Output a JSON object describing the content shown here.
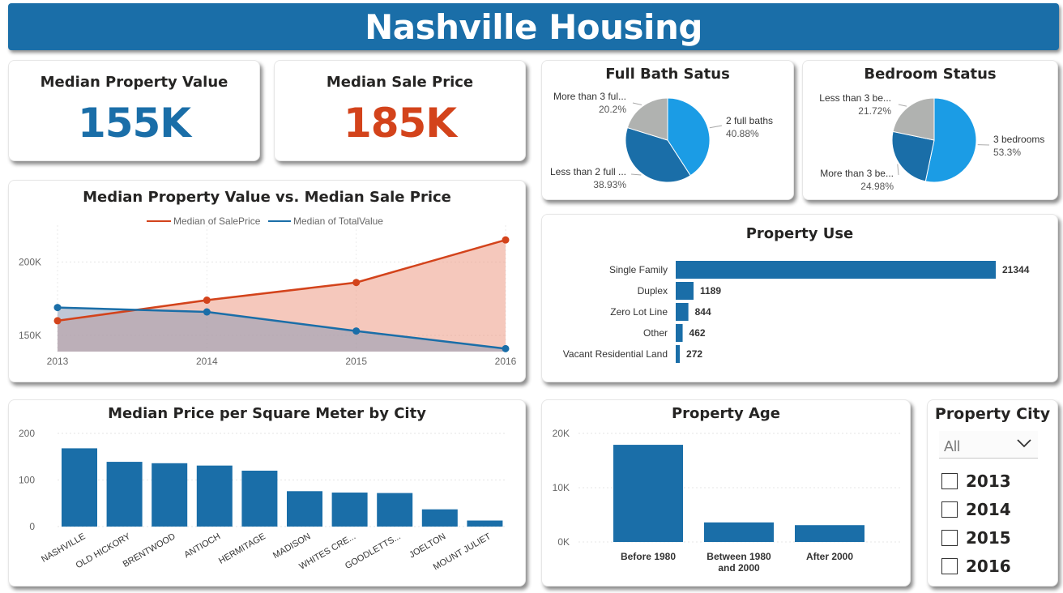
{
  "header": {
    "title": "Nashville Housing"
  },
  "kpis": {
    "property_value": {
      "label": "Median Property Value",
      "value": "155K",
      "color": "#1a6ea8"
    },
    "sale_price": {
      "label": "Median Sale Price",
      "value": "185K",
      "color": "#d3431b"
    }
  },
  "colors": {
    "blue": "#1a6ea8",
    "orange": "#d3431b",
    "light_blue": "#1b9ce5",
    "gray": "#b0b2b0"
  },
  "full_bath": {
    "title": "Full Bath Satus",
    "slices": [
      {
        "label": "2 full baths",
        "pct": "40.88%",
        "value": 40.88,
        "color": "#1b9ce5"
      },
      {
        "label": "Less than 2 full ...",
        "pct": "38.93%",
        "value": 38.93,
        "color": "#1a6ea8"
      },
      {
        "label": "More than 3 ful...",
        "pct": "20.2%",
        "value": 20.2,
        "color": "#b0b2b0"
      }
    ]
  },
  "bedroom": {
    "title": "Bedroom Status",
    "slices": [
      {
        "label": "3 bedrooms",
        "pct": "53.3%",
        "value": 53.3,
        "color": "#1b9ce5"
      },
      {
        "label": "More than 3 be...",
        "pct": "24.98%",
        "value": 24.98,
        "color": "#1a6ea8"
      },
      {
        "label": "Less than 3 be...",
        "pct": "21.72%",
        "value": 21.72,
        "color": "#b0b2b0"
      }
    ]
  },
  "line_chart": {
    "title": "Median Property Value vs. Median Sale Price",
    "legend": [
      "Median of SalePrice",
      "Median of TotalValue"
    ],
    "y_ticks": [
      "200K",
      "150K"
    ]
  },
  "property_use": {
    "title": "Property Use"
  },
  "price_sqm": {
    "title": "Median Price per Square Meter by City",
    "y_ticks": [
      "200",
      "100",
      "0"
    ]
  },
  "property_age": {
    "title": "Property Age",
    "y_ticks": [
      "20K",
      "10K",
      "0K"
    ]
  },
  "slicer": {
    "title": "Property City",
    "dropdown_value": "All",
    "options": [
      "2013",
      "2014",
      "2015",
      "2016"
    ]
  },
  "chart_data": [
    {
      "type": "line",
      "title": "Median Property Value vs. Median Sale Price",
      "x": [
        "2013",
        "2014",
        "2015",
        "2016"
      ],
      "series": [
        {
          "name": "Median of SalePrice",
          "values": [
            160000,
            174000,
            186000,
            215000
          ],
          "color": "#d3431b"
        },
        {
          "name": "Median of TotalValue",
          "values": [
            169000,
            166000,
            153000,
            141000
          ],
          "color": "#1a6ea8"
        }
      ],
      "ylim": [
        140000,
        220000
      ]
    },
    {
      "type": "bar",
      "title": "Property Use",
      "orientation": "horizontal",
      "categories": [
        "Single Family",
        "Duplex",
        "Zero Lot Line",
        "Other",
        "Vacant Residential Land"
      ],
      "values": [
        21344,
        1189,
        844,
        462,
        272
      ]
    },
    {
      "type": "bar",
      "title": "Median Price per Square Meter by City",
      "categories": [
        "NASHVILLE",
        "OLD HICKORY",
        "BRENTWOOD",
        "ANTIOCH",
        "HERMITAGE",
        "MADISON",
        "WHITES CRE...",
        "GOODLETTS...",
        "JOELTON",
        "MOUNT JULIET"
      ],
      "values": [
        168,
        139,
        136,
        131,
        120,
        76,
        73,
        72,
        37,
        13
      ],
      "ylim": [
        0,
        200
      ]
    },
    {
      "type": "bar",
      "title": "Property Age",
      "categories": [
        "Before 1980",
        "Between 1980 and 2000",
        "After 2000"
      ],
      "values": [
        17900,
        3600,
        3100
      ],
      "ylim": [
        0,
        20000
      ]
    },
    {
      "type": "pie",
      "title": "Full Bath Satus",
      "labels": [
        "2 full baths",
        "Less than 2 full ...",
        "More than 3 ful..."
      ],
      "values": [
        40.88,
        38.93,
        20.2
      ]
    },
    {
      "type": "pie",
      "title": "Bedroom Status",
      "labels": [
        "3 bedrooms",
        "More than 3 be...",
        "Less than 3 be..."
      ],
      "values": [
        53.3,
        24.98,
        21.72
      ]
    }
  ]
}
